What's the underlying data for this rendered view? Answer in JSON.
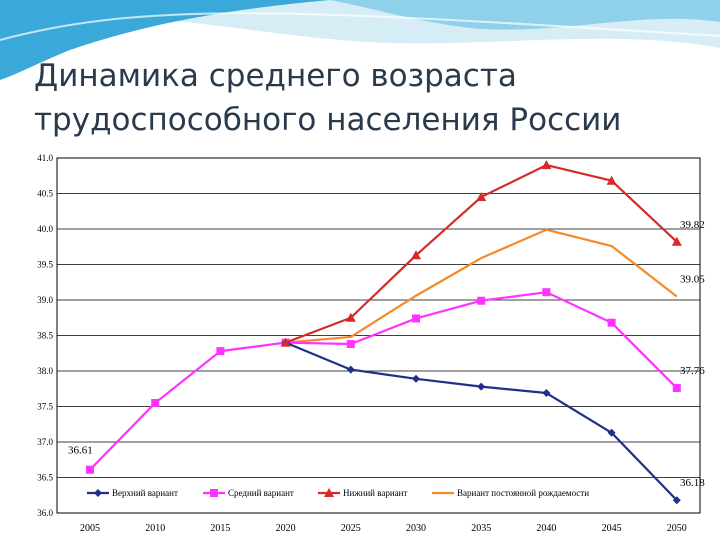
{
  "slide": {
    "title_line1": "Динамика среднего возраста",
    "title_line2": "трудоспособного населения России"
  },
  "colors": {
    "title": "#2a3a4d",
    "banner_light": "#d7edf6",
    "banner_mid": "#8fd0ea",
    "banner_dark": "#3aa8d8"
  },
  "chart_data": {
    "type": "line",
    "categories": [
      "2005",
      "2010",
      "2015",
      "2020",
      "2025",
      "2030",
      "2035",
      "2040",
      "2045",
      "2050"
    ],
    "ylim": [
      36.0,
      41.0
    ],
    "yticks": [
      "36.0",
      "36.5",
      "37.0",
      "37.5",
      "38.0",
      "38.5",
      "39.0",
      "39.5",
      "40.0",
      "40.5",
      "41.0"
    ],
    "grid": true,
    "legend_position": "bottom",
    "series": [
      {
        "name": "Верхний вариант",
        "color": "#1f2f8a",
        "marker": "diamond",
        "values": [
          null,
          null,
          null,
          38.4,
          38.02,
          37.89,
          37.78,
          37.69,
          37.13,
          36.18
        ]
      },
      {
        "name": "Средний вариант",
        "color": "#ff33ff",
        "marker": "square",
        "values": [
          36.61,
          37.55,
          38.28,
          38.4,
          38.38,
          38.74,
          38.99,
          39.11,
          38.68,
          37.76
        ]
      },
      {
        "name": "Нижний вариант",
        "color": "#d42a2a",
        "marker": "triangle",
        "values": [
          null,
          null,
          null,
          38.4,
          38.75,
          39.63,
          40.45,
          40.9,
          40.68,
          39.82
        ]
      },
      {
        "name": "Вариант постоянной рождаемости",
        "color": "#f58a2a",
        "marker": "none",
        "values": [
          null,
          null,
          null,
          38.4,
          38.48,
          39.06,
          39.59,
          39.99,
          39.76,
          39.05
        ]
      }
    ],
    "annotations": [
      {
        "text": "36.61",
        "x": "2005",
        "y": 36.61
      },
      {
        "text": "39.82",
        "x": "2050",
        "y": 39.82
      },
      {
        "text": "39.05",
        "x": "2050",
        "y": 39.05
      },
      {
        "text": "37.76",
        "x": "2050",
        "y": 37.76
      },
      {
        "text": "36.18",
        "x": "2050",
        "y": 36.18
      }
    ]
  }
}
